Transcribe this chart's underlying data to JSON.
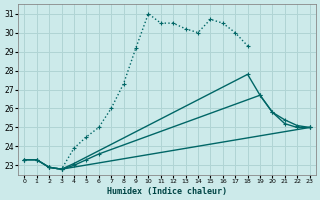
{
  "xlabel": "Humidex (Indice chaleur)",
  "ylabel": "",
  "background_color": "#cceaea",
  "grid_color": "#b0d4d4",
  "line_color": "#006666",
  "xlim": [
    -0.5,
    23.5
  ],
  "ylim": [
    22.5,
    31.5
  ],
  "yticks": [
    23,
    24,
    25,
    26,
    27,
    28,
    29,
    30,
    31
  ],
  "xticks": [
    0,
    1,
    2,
    3,
    4,
    5,
    6,
    7,
    8,
    9,
    10,
    11,
    12,
    13,
    14,
    15,
    16,
    17,
    18,
    19,
    20,
    21,
    22,
    23
  ],
  "curves": [
    {
      "x": [
        2,
        3,
        4,
        5,
        6,
        7,
        8,
        9,
        10,
        11,
        12,
        13,
        14,
        15,
        16,
        17,
        18
      ],
      "y": [
        22.9,
        22.8,
        23.9,
        24.5,
        25.0,
        26.0,
        27.3,
        29.2,
        31.0,
        30.5,
        30.5,
        30.2,
        30.0,
        30.7,
        30.5,
        30.0,
        29.3
      ],
      "style": ":",
      "marker": "+",
      "lw": 1.0,
      "ms": 3.0
    },
    {
      "x": [
        0,
        1,
        2,
        3,
        4,
        18,
        19,
        20,
        21,
        22,
        23
      ],
      "y": [
        23.3,
        23.3,
        22.9,
        22.8,
        23.1,
        27.8,
        26.7,
        25.8,
        25.2,
        25.0,
        25.0
      ],
      "style": "-",
      "marker": "+",
      "lw": 1.0,
      "ms": 3.0
    },
    {
      "x": [
        0,
        1,
        2,
        3,
        4,
        5,
        6,
        19,
        20,
        21,
        22,
        23
      ],
      "y": [
        23.3,
        23.3,
        22.9,
        22.8,
        23.0,
        23.3,
        23.6,
        26.7,
        25.8,
        25.4,
        25.1,
        25.0
      ],
      "style": "-",
      "marker": "+",
      "lw": 1.0,
      "ms": 3.0
    },
    {
      "x": [
        0,
        1,
        2,
        3,
        23
      ],
      "y": [
        23.3,
        23.3,
        22.9,
        22.8,
        25.0
      ],
      "style": "-",
      "marker": "+",
      "lw": 1.0,
      "ms": 3.0
    }
  ]
}
